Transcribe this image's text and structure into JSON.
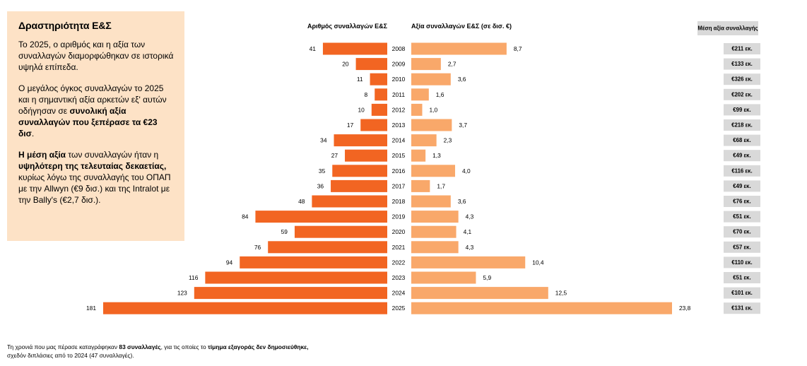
{
  "panel": {
    "title": "Δραστηριότητα Ε&Σ",
    "p1": "Το 2025, ο αριθμός και η αξία των συναλλαγών διαμορφώθηκαν σε ιστορικά υψηλά επίπεδα.",
    "p2_a": "Ο μεγάλος όγκος συναλλαγών το 2025 και η σημαντική αξία αρκετών εξ' αυτών οδήγησαν σε ",
    "p2_b": "συνολική αξία συναλλαγών που ξεπέρασε τα €23 δισ",
    "p2_c": ".",
    "p3_a": "Η μέση αξία",
    "p3_b": " των συναλλαγών ήταν η ",
    "p3_c": "υψηλότερη της τελευταίας δεκαετίας,",
    "p3_d": " κυρίως λόγω της συναλλαγής του ΟΠΑΠ με την Allwyn (€9 δισ.) και της Intralot με την Bally's (€2,7 δισ.)."
  },
  "footnote": {
    "a": "Τη χρονιά που μας πέρασε καταγράφηκαν ",
    "b": "83 συναλλαγές",
    "c": ", για τις οποίες το ",
    "d": "τίμημα εξαγοράς δεν δημοσιεύθηκε,",
    "e": "σχεδόν διπλάσιες από το 2024 (47 συναλλαγές)."
  },
  "colors": {
    "count_bar": "#f26522",
    "value_bar": "#f9a86a",
    "avg_box": "#d9d9d9",
    "panel_bg": "#fde2c6"
  },
  "chart_data": {
    "type": "bar",
    "categories": [
      "2008",
      "2009",
      "2010",
      "2011",
      "2012",
      "2013",
      "2014",
      "2015",
      "2016",
      "2017",
      "2018",
      "2019",
      "2020",
      "2021",
      "2022",
      "2023",
      "2024",
      "2025"
    ],
    "series": [
      {
        "name": "Αριθμός συναλλαγών Ε&Σ",
        "direction": "left",
        "values": [
          41,
          20,
          11,
          8,
          10,
          17,
          34,
          27,
          35,
          36,
          48,
          84,
          59,
          76,
          94,
          116,
          123,
          181
        ],
        "labels": [
          "41",
          "20",
          "11",
          "8",
          "10",
          "17",
          "34",
          "27",
          "35",
          "36",
          "48",
          "84",
          "59",
          "76",
          "94",
          "116",
          "123",
          "181"
        ]
      },
      {
        "name": "Αξία συναλλαγών Ε&Σ (σε δισ. €)",
        "direction": "right",
        "values": [
          8.7,
          2.7,
          3.6,
          1.6,
          1.0,
          3.7,
          2.3,
          1.3,
          4.0,
          1.7,
          3.6,
          4.3,
          4.1,
          4.3,
          10.4,
          5.9,
          12.5,
          23.8
        ],
        "labels": [
          "8,7",
          "2,7",
          "3,6",
          "1,6",
          "1,0",
          "3,7",
          "2,3",
          "1,3",
          "4,0",
          "1,7",
          "3,6",
          "4,3",
          "4,1",
          "4,3",
          "10,4",
          "5,9",
          "12,5",
          "23,8"
        ]
      }
    ],
    "average_value": {
      "title": "Μέση αξία συναλλαγής",
      "labels": [
        "€211 εκ.",
        "€133 εκ.",
        "€326 εκ.",
        "€202 εκ.",
        "€99 εκ.",
        "€218 εκ.",
        "€68 εκ.",
        "€49 εκ.",
        "€116 εκ.",
        "€49 εκ.",
        "€76 εκ.",
        "€51 εκ.",
        "€70 εκ.",
        "€57 εκ.",
        "€110 εκ.",
        "€51 εκ.",
        "€101 εκ.",
        "€131 εκ."
      ]
    }
  }
}
